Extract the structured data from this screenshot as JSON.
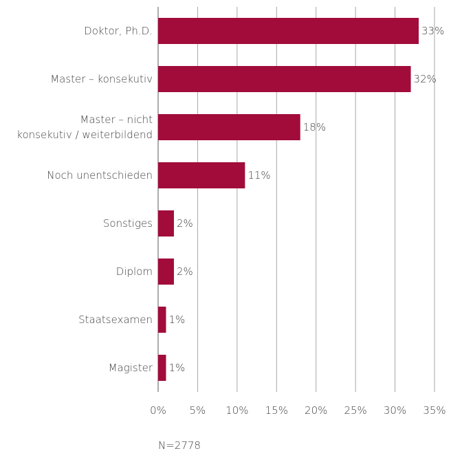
{
  "chart_data": {
    "type": "bar",
    "orientation": "horizontal",
    "categories": [
      [
        "Doktor, Ph.D."
      ],
      [
        "Master – konsekutiv"
      ],
      [
        "Master – nicht",
        "konsekutiv / weiterbildend"
      ],
      [
        "Noch unentschieden"
      ],
      [
        "Sonstiges"
      ],
      [
        "Diplom"
      ],
      [
        "Staatsexamen"
      ],
      [
        "Magister"
      ]
    ],
    "values": [
      33,
      32,
      18,
      11,
      2,
      2,
      1,
      1
    ],
    "value_labels": [
      "33%",
      "32%",
      "18%",
      "11%",
      "2%",
      "2%",
      "1%",
      "1%"
    ],
    "xlim": [
      0,
      35
    ],
    "xticks": [
      0,
      5,
      10,
      15,
      20,
      25,
      30,
      35
    ],
    "xtick_labels": [
      "0%",
      "5%",
      "10%",
      "15%",
      "20%",
      "25%",
      "30%",
      "35%"
    ],
    "grid": "vertical",
    "bar_color": "#a20c3a",
    "note": "N=2778"
  }
}
